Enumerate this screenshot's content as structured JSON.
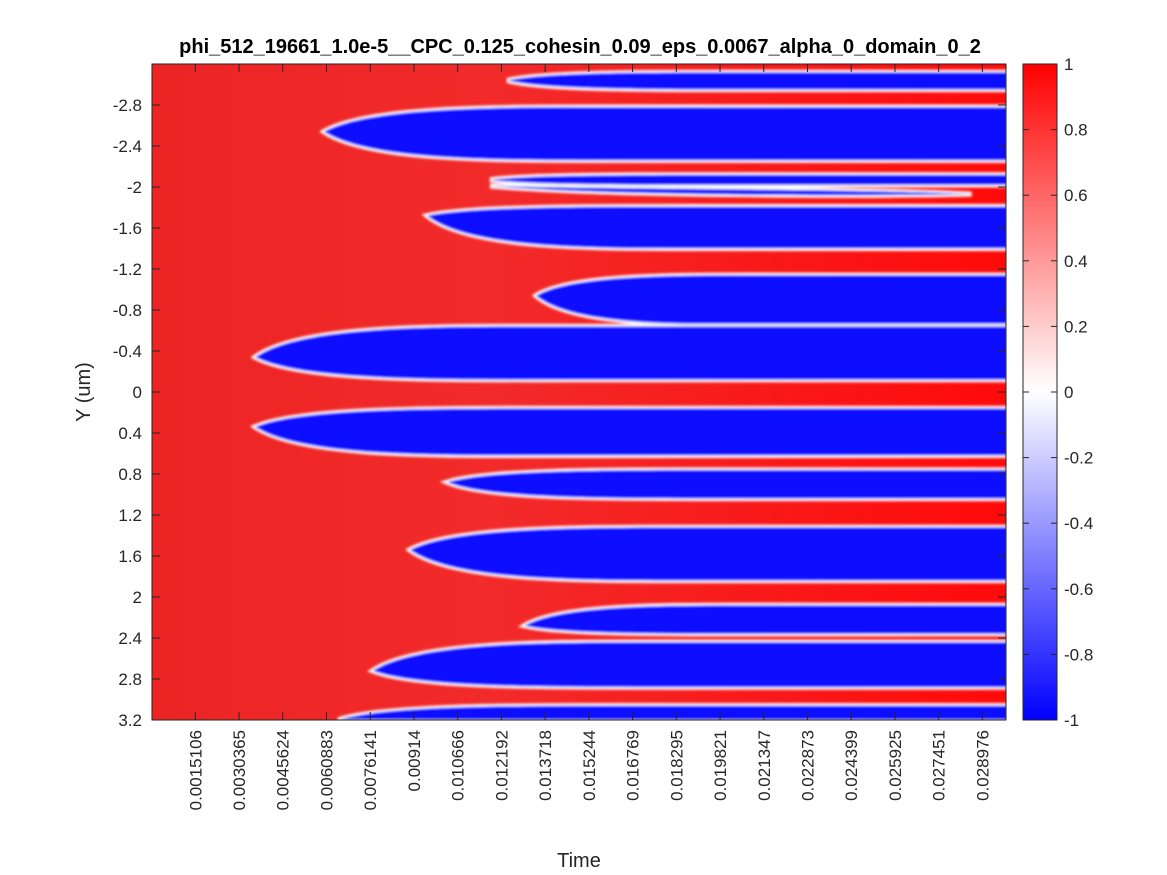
{
  "chart_data": {
    "type": "heatmap",
    "title": "phi_512_19661_1.0e-5__CPC_0.125_cohesin_0.09_eps_0.0067_alpha_0_domain_0_2",
    "xlabel": "Time",
    "ylabel": "Y (um)",
    "x_ticks": [
      "0.0015106",
      "0.0030365",
      "0.0045624",
      "0.0060883",
      "0.0076141",
      "0.00914",
      "0.010666",
      "0.012192",
      "0.013718",
      "0.015244",
      "0.016769",
      "0.018295",
      "0.019821",
      "0.021347",
      "0.022873",
      "0.024399",
      "0.025925",
      "0.027451",
      "0.028976"
    ],
    "x_tick_values": [
      0.0015106,
      0.0030365,
      0.0045624,
      0.0060883,
      0.0076141,
      0.00914,
      0.010666,
      0.012192,
      0.013718,
      0.015244,
      0.016769,
      0.018295,
      0.019821,
      0.021347,
      0.022873,
      0.024399,
      0.025925,
      0.027451,
      0.028976
    ],
    "xlim": [
      0,
      0.0298
    ],
    "y_ticks": [
      "-2.8",
      "-2.4",
      "-2",
      "-1.6",
      "-1.2",
      "-0.8",
      "-0.4",
      "0",
      "0.4",
      "0.8",
      "1.2",
      "1.6",
      "2",
      "2.4",
      "2.8",
      "3.2"
    ],
    "y_tick_values": [
      -2.8,
      -2.4,
      -2,
      -1.6,
      -1.2,
      -0.8,
      -0.4,
      0,
      0.4,
      0.8,
      1.2,
      1.6,
      2,
      2.4,
      2.8,
      3.2
    ],
    "ylim": [
      -3.2,
      3.2
    ],
    "y_reversed": true,
    "colorbar": {
      "ticks": [
        "1",
        "0.8",
        "0.6",
        "0.4",
        "0.2",
        "0",
        "-0.2",
        "-0.4",
        "-0.6",
        "-0.8",
        "-1"
      ],
      "tick_values": [
        1,
        0.8,
        0.6,
        0.4,
        0.2,
        0,
        -0.2,
        -0.4,
        -0.6,
        -0.8,
        -1
      ],
      "range": [
        -1,
        1
      ],
      "colormap": [
        "#0000ff",
        "#ffffff",
        "#ff0000"
      ]
    },
    "background_value": 0.9,
    "domains": [
      {
        "phi": -0.95,
        "y_top": -3.12,
        "y_bottom": -2.95,
        "t_nucleation": 0.0124,
        "y_nucleation": -3.04
      },
      {
        "phi": -0.95,
        "y_top": -2.78,
        "y_bottom": -2.26,
        "t_nucleation": 0.006,
        "y_nucleation": -2.54
      },
      {
        "phi": -0.95,
        "y_top": -2.12,
        "y_bottom": -2.02,
        "t_nucleation": 0.0118,
        "y_nucleation": -2.07
      },
      {
        "phi": -0.95,
        "y_top": -1.98,
        "y_bottom": -1.91,
        "t_nucleation": 0.0118,
        "y_nucleation": -2.01,
        "t_end": 0.0286,
        "y_end": -1.93
      },
      {
        "phi": -0.95,
        "y_top": -1.81,
        "y_bottom": -1.4,
        "t_nucleation": 0.0096,
        "y_nucleation": -1.72
      },
      {
        "phi": -0.95,
        "y_top": -1.14,
        "y_bottom": -0.66,
        "t_nucleation": 0.0134,
        "y_nucleation": -0.94
      },
      {
        "phi": -0.95,
        "y_top": -0.64,
        "y_bottom": -0.12,
        "t_nucleation": 0.0036,
        "y_nucleation": -0.34
      },
      {
        "phi": -0.95,
        "y_top": 0.16,
        "y_bottom": 0.62,
        "t_nucleation": 0.0036,
        "y_nucleation": 0.34
      },
      {
        "phi": -0.95,
        "y_top": 0.76,
        "y_bottom": 1.04,
        "t_nucleation": 0.0103,
        "y_nucleation": 0.88
      },
      {
        "phi": -0.95,
        "y_top": 1.32,
        "y_bottom": 1.84,
        "t_nucleation": 0.009,
        "y_nucleation": 1.54
      },
      {
        "phi": -0.95,
        "y_top": 2.08,
        "y_bottom": 2.36,
        "t_nucleation": 0.013,
        "y_nucleation": 2.28
      },
      {
        "phi": -0.95,
        "y_top": 2.44,
        "y_bottom": 2.88,
        "t_nucleation": 0.0077,
        "y_nucleation": 2.72
      },
      {
        "phi": -0.95,
        "y_top": 3.06,
        "y_bottom": 3.2,
        "t_nucleation": 0.0065,
        "y_nucleation": 3.2
      }
    ]
  }
}
